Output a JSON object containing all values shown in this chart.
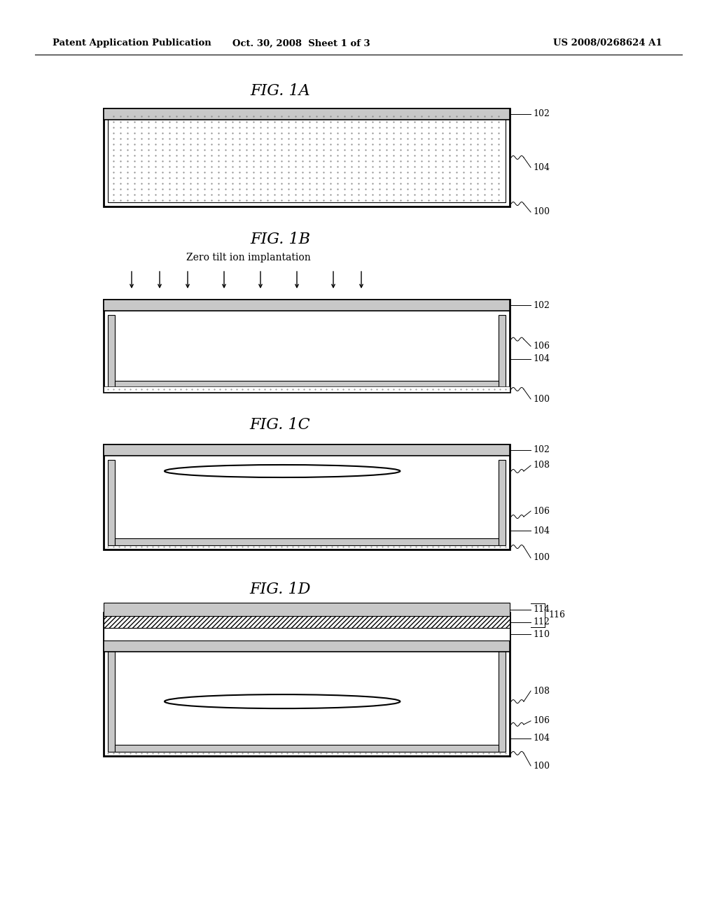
{
  "bg": "#ffffff",
  "header_left": "Patent Application Publication",
  "header_center": "Oct. 30, 2008  Sheet 1 of 3",
  "header_right": "US 2008/0268624 A1",
  "fig1a_title": "FIG. 1A",
  "fig1b_title": "FIG. 1B",
  "fig1c_title": "FIG. 1C",
  "fig1d_title": "FIG. 1D",
  "ion_label": "Zero tilt ion implantation",
  "gray": "#c8c8c8",
  "black": "#000000",
  "white": "#ffffff"
}
